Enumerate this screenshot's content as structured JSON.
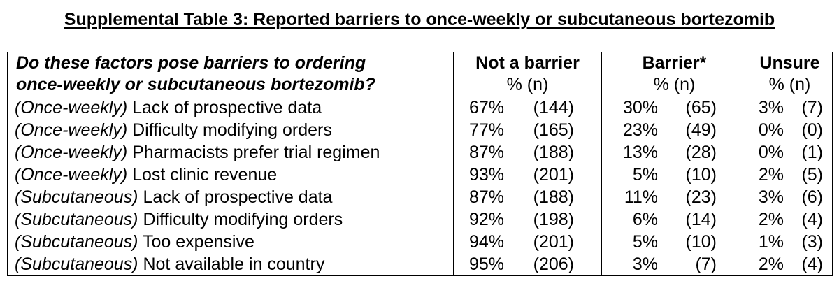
{
  "title": "Supplemental Table 3: Reported barriers to once-weekly or subcutaneous bortezomib",
  "header": {
    "question_line1": "Do these factors pose barriers to ordering",
    "question_line2": "once-weekly or subcutaneous bortezomib?",
    "col_not_barrier": "Not a barrier",
    "col_barrier": "Barrier*",
    "col_unsure": "Unsure",
    "pct_n": "%   (n)"
  },
  "rows": [
    {
      "prefix": "(Once-weekly)",
      "factor": "Lack of prospective data",
      "nb_pct": "67%",
      "nb_n": "(144)",
      "b_pct": "30%",
      "b_n": "(65)",
      "u_pct": "3%",
      "u_n": "(7)"
    },
    {
      "prefix": "(Once-weekly)",
      "factor": "Difficulty modifying orders",
      "nb_pct": "77%",
      "nb_n": "(165)",
      "b_pct": "23%",
      "b_n": "(49)",
      "u_pct": "0%",
      "u_n": "(0)"
    },
    {
      "prefix": "(Once-weekly)",
      "factor": "Pharmacists prefer trial regimen",
      "nb_pct": "87%",
      "nb_n": "(188)",
      "b_pct": "13%",
      "b_n": "(28)",
      "u_pct": "0%",
      "u_n": "(1)"
    },
    {
      "prefix": "(Once-weekly)",
      "factor": "Lost clinic revenue",
      "nb_pct": "93%",
      "nb_n": "(201)",
      "b_pct": "5%",
      "b_n": "(10)",
      "u_pct": "2%",
      "u_n": "(5)"
    },
    {
      "prefix": "(Subcutaneous)",
      "factor": "Lack of prospective data",
      "nb_pct": "87%",
      "nb_n": "(188)",
      "b_pct": "11%",
      "b_n": "(23)",
      "u_pct": "3%",
      "u_n": "(6)"
    },
    {
      "prefix": "(Subcutaneous)",
      "factor": "Difficulty modifying orders",
      "nb_pct": "92%",
      "nb_n": "(198)",
      "b_pct": "6%",
      "b_n": "(14)",
      "u_pct": "2%",
      "u_n": "(4)"
    },
    {
      "prefix": "(Subcutaneous)",
      "factor": "Too expensive",
      "nb_pct": "94%",
      "nb_n": "(201)",
      "b_pct": "5%",
      "b_n": "(10)",
      "u_pct": "1%",
      "u_n": "(3)"
    },
    {
      "prefix": "(Subcutaneous)",
      "factor": "Not available in country",
      "nb_pct": "95%",
      "nb_n": "(206)",
      "b_pct": "3%",
      "b_n": "(7)",
      "u_pct": "2%",
      "u_n": "(4)"
    }
  ]
}
